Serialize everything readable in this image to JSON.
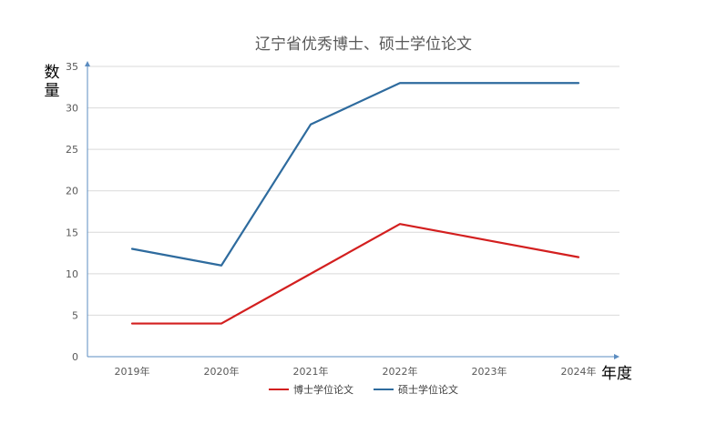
{
  "chart_data": {
    "type": "line",
    "title": "辽宁省优秀博士、硕士学位论文",
    "xlabel": "年度",
    "ylabel": "数量",
    "categories": [
      "2019年",
      "2020年",
      "2021年",
      "2022年",
      "2023年",
      "2024年"
    ],
    "ylim": [
      0,
      35
    ],
    "yticks": [
      0,
      5,
      10,
      15,
      20,
      25,
      30,
      35
    ],
    "grid": true,
    "legend_position": "bottom",
    "series": [
      {
        "name": "博士学位论文",
        "color": "#d31f1f",
        "values": [
          4,
          4,
          10,
          16,
          14,
          12
        ]
      },
      {
        "name": "硕士学位论文",
        "color": "#2e6b9e",
        "values": [
          13,
          11,
          28,
          33,
          33,
          33
        ]
      }
    ]
  }
}
